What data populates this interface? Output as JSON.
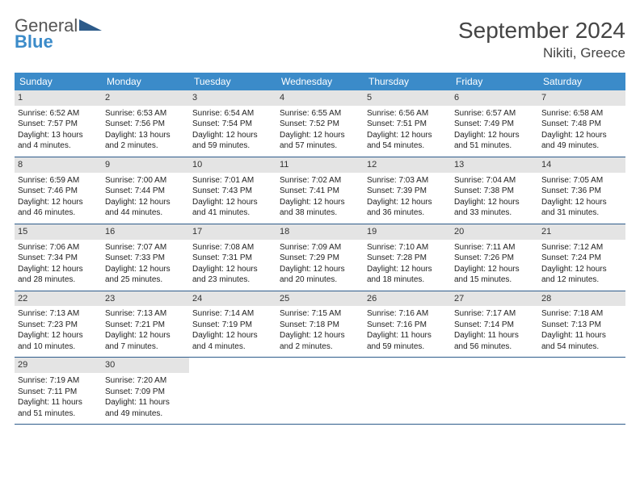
{
  "brand": {
    "word1": "General",
    "word2": "Blue"
  },
  "title": "September 2024",
  "location": "Nikiti, Greece",
  "dow_header_color": "#3b8bc9",
  "accent_color": "#2d5b8a",
  "daynum_bg": "#e4e4e4",
  "days_of_week": [
    "Sunday",
    "Monday",
    "Tuesday",
    "Wednesday",
    "Thursday",
    "Friday",
    "Saturday"
  ],
  "weeks": [
    [
      {
        "n": "1",
        "sunrise": "Sunrise: 6:52 AM",
        "sunset": "Sunset: 7:57 PM",
        "daylight1": "Daylight: 13 hours",
        "daylight2": "and 4 minutes."
      },
      {
        "n": "2",
        "sunrise": "Sunrise: 6:53 AM",
        "sunset": "Sunset: 7:56 PM",
        "daylight1": "Daylight: 13 hours",
        "daylight2": "and 2 minutes."
      },
      {
        "n": "3",
        "sunrise": "Sunrise: 6:54 AM",
        "sunset": "Sunset: 7:54 PM",
        "daylight1": "Daylight: 12 hours",
        "daylight2": "and 59 minutes."
      },
      {
        "n": "4",
        "sunrise": "Sunrise: 6:55 AM",
        "sunset": "Sunset: 7:52 PM",
        "daylight1": "Daylight: 12 hours",
        "daylight2": "and 57 minutes."
      },
      {
        "n": "5",
        "sunrise": "Sunrise: 6:56 AM",
        "sunset": "Sunset: 7:51 PM",
        "daylight1": "Daylight: 12 hours",
        "daylight2": "and 54 minutes."
      },
      {
        "n": "6",
        "sunrise": "Sunrise: 6:57 AM",
        "sunset": "Sunset: 7:49 PM",
        "daylight1": "Daylight: 12 hours",
        "daylight2": "and 51 minutes."
      },
      {
        "n": "7",
        "sunrise": "Sunrise: 6:58 AM",
        "sunset": "Sunset: 7:48 PM",
        "daylight1": "Daylight: 12 hours",
        "daylight2": "and 49 minutes."
      }
    ],
    [
      {
        "n": "8",
        "sunrise": "Sunrise: 6:59 AM",
        "sunset": "Sunset: 7:46 PM",
        "daylight1": "Daylight: 12 hours",
        "daylight2": "and 46 minutes."
      },
      {
        "n": "9",
        "sunrise": "Sunrise: 7:00 AM",
        "sunset": "Sunset: 7:44 PM",
        "daylight1": "Daylight: 12 hours",
        "daylight2": "and 44 minutes."
      },
      {
        "n": "10",
        "sunrise": "Sunrise: 7:01 AM",
        "sunset": "Sunset: 7:43 PM",
        "daylight1": "Daylight: 12 hours",
        "daylight2": "and 41 minutes."
      },
      {
        "n": "11",
        "sunrise": "Sunrise: 7:02 AM",
        "sunset": "Sunset: 7:41 PM",
        "daylight1": "Daylight: 12 hours",
        "daylight2": "and 38 minutes."
      },
      {
        "n": "12",
        "sunrise": "Sunrise: 7:03 AM",
        "sunset": "Sunset: 7:39 PM",
        "daylight1": "Daylight: 12 hours",
        "daylight2": "and 36 minutes."
      },
      {
        "n": "13",
        "sunrise": "Sunrise: 7:04 AM",
        "sunset": "Sunset: 7:38 PM",
        "daylight1": "Daylight: 12 hours",
        "daylight2": "and 33 minutes."
      },
      {
        "n": "14",
        "sunrise": "Sunrise: 7:05 AM",
        "sunset": "Sunset: 7:36 PM",
        "daylight1": "Daylight: 12 hours",
        "daylight2": "and 31 minutes."
      }
    ],
    [
      {
        "n": "15",
        "sunrise": "Sunrise: 7:06 AM",
        "sunset": "Sunset: 7:34 PM",
        "daylight1": "Daylight: 12 hours",
        "daylight2": "and 28 minutes."
      },
      {
        "n": "16",
        "sunrise": "Sunrise: 7:07 AM",
        "sunset": "Sunset: 7:33 PM",
        "daylight1": "Daylight: 12 hours",
        "daylight2": "and 25 minutes."
      },
      {
        "n": "17",
        "sunrise": "Sunrise: 7:08 AM",
        "sunset": "Sunset: 7:31 PM",
        "daylight1": "Daylight: 12 hours",
        "daylight2": "and 23 minutes."
      },
      {
        "n": "18",
        "sunrise": "Sunrise: 7:09 AM",
        "sunset": "Sunset: 7:29 PM",
        "daylight1": "Daylight: 12 hours",
        "daylight2": "and 20 minutes."
      },
      {
        "n": "19",
        "sunrise": "Sunrise: 7:10 AM",
        "sunset": "Sunset: 7:28 PM",
        "daylight1": "Daylight: 12 hours",
        "daylight2": "and 18 minutes."
      },
      {
        "n": "20",
        "sunrise": "Sunrise: 7:11 AM",
        "sunset": "Sunset: 7:26 PM",
        "daylight1": "Daylight: 12 hours",
        "daylight2": "and 15 minutes."
      },
      {
        "n": "21",
        "sunrise": "Sunrise: 7:12 AM",
        "sunset": "Sunset: 7:24 PM",
        "daylight1": "Daylight: 12 hours",
        "daylight2": "and 12 minutes."
      }
    ],
    [
      {
        "n": "22",
        "sunrise": "Sunrise: 7:13 AM",
        "sunset": "Sunset: 7:23 PM",
        "daylight1": "Daylight: 12 hours",
        "daylight2": "and 10 minutes."
      },
      {
        "n": "23",
        "sunrise": "Sunrise: 7:13 AM",
        "sunset": "Sunset: 7:21 PM",
        "daylight1": "Daylight: 12 hours",
        "daylight2": "and 7 minutes."
      },
      {
        "n": "24",
        "sunrise": "Sunrise: 7:14 AM",
        "sunset": "Sunset: 7:19 PM",
        "daylight1": "Daylight: 12 hours",
        "daylight2": "and 4 minutes."
      },
      {
        "n": "25",
        "sunrise": "Sunrise: 7:15 AM",
        "sunset": "Sunset: 7:18 PM",
        "daylight1": "Daylight: 12 hours",
        "daylight2": "and 2 minutes."
      },
      {
        "n": "26",
        "sunrise": "Sunrise: 7:16 AM",
        "sunset": "Sunset: 7:16 PM",
        "daylight1": "Daylight: 11 hours",
        "daylight2": "and 59 minutes."
      },
      {
        "n": "27",
        "sunrise": "Sunrise: 7:17 AM",
        "sunset": "Sunset: 7:14 PM",
        "daylight1": "Daylight: 11 hours",
        "daylight2": "and 56 minutes."
      },
      {
        "n": "28",
        "sunrise": "Sunrise: 7:18 AM",
        "sunset": "Sunset: 7:13 PM",
        "daylight1": "Daylight: 11 hours",
        "daylight2": "and 54 minutes."
      }
    ],
    [
      {
        "n": "29",
        "sunrise": "Sunrise: 7:19 AM",
        "sunset": "Sunset: 7:11 PM",
        "daylight1": "Daylight: 11 hours",
        "daylight2": "and 51 minutes."
      },
      {
        "n": "30",
        "sunrise": "Sunrise: 7:20 AM",
        "sunset": "Sunset: 7:09 PM",
        "daylight1": "Daylight: 11 hours",
        "daylight2": "and 49 minutes."
      },
      {
        "empty": true
      },
      {
        "empty": true
      },
      {
        "empty": true
      },
      {
        "empty": true
      },
      {
        "empty": true
      }
    ]
  ]
}
